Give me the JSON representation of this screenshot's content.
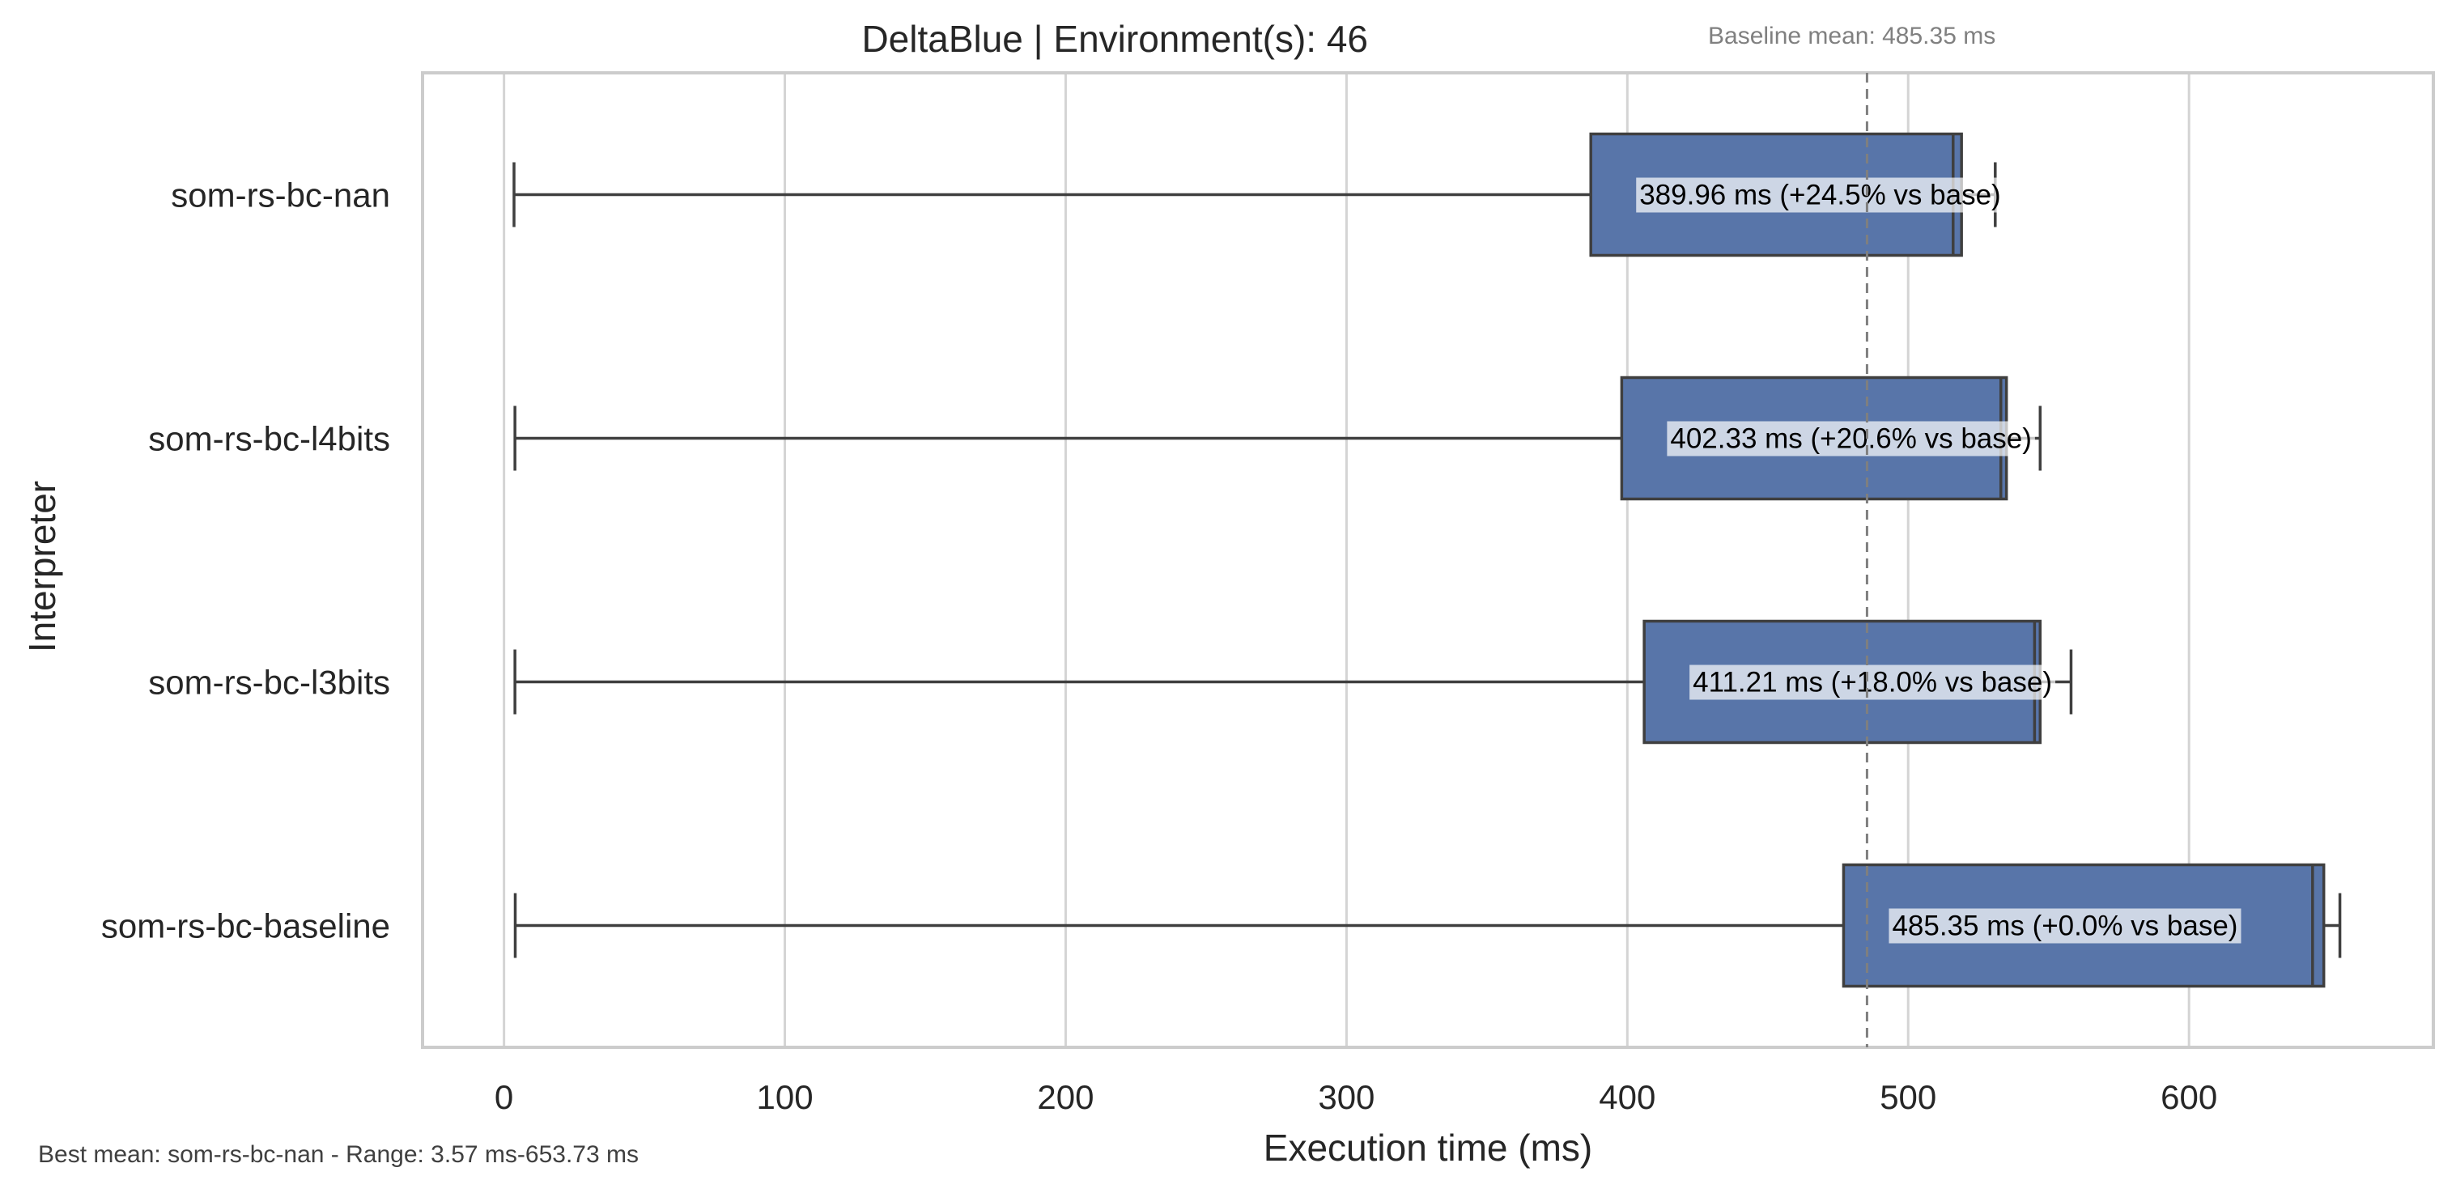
{
  "chart_data": {
    "type": "boxplot",
    "orientation": "horizontal",
    "title": "DeltaBlue | Environment(s): 46",
    "baseline_note": "Baseline mean: 485.35 ms",
    "xlabel": "Execution time (ms)",
    "ylabel": "Interpreter",
    "xlim": [
      -29,
      687
    ],
    "xticks": [
      0,
      100,
      200,
      300,
      400,
      500,
      600
    ],
    "grid": "vertical",
    "baseline_mean": 485.35,
    "box_color": "#5875a9",
    "edge_color": "#3f3f3f",
    "series": [
      {
        "name": "som-rs-bc-nan",
        "min": 3.57,
        "q1": 387,
        "median": 516,
        "q3": 519,
        "max": 531,
        "outlier": null,
        "annotation": "389.96 ms  (+24.5% vs base)"
      },
      {
        "name": "som-rs-bc-l4bits",
        "min": 3.9,
        "q1": 398,
        "median": 533,
        "q3": 535,
        "max": 547,
        "outlier": null,
        "annotation": "402.33 ms  (+20.6% vs base)"
      },
      {
        "name": "som-rs-bc-l3bits",
        "min": 3.9,
        "q1": 406,
        "median": 545,
        "q3": 547,
        "max": 558,
        "outlier": null,
        "annotation": "411.21 ms  (+18.0% vs base)"
      },
      {
        "name": "som-rs-bc-baseline",
        "min": 4.0,
        "q1": 477,
        "median": 644,
        "q3": 648,
        "max": 653.73,
        "outlier": null,
        "annotation": "485.35 ms  (+0.0% vs base)"
      }
    ],
    "footer": "Best mean: som-rs-bc-nan - Range: 3.57 ms-653.73 ms"
  }
}
